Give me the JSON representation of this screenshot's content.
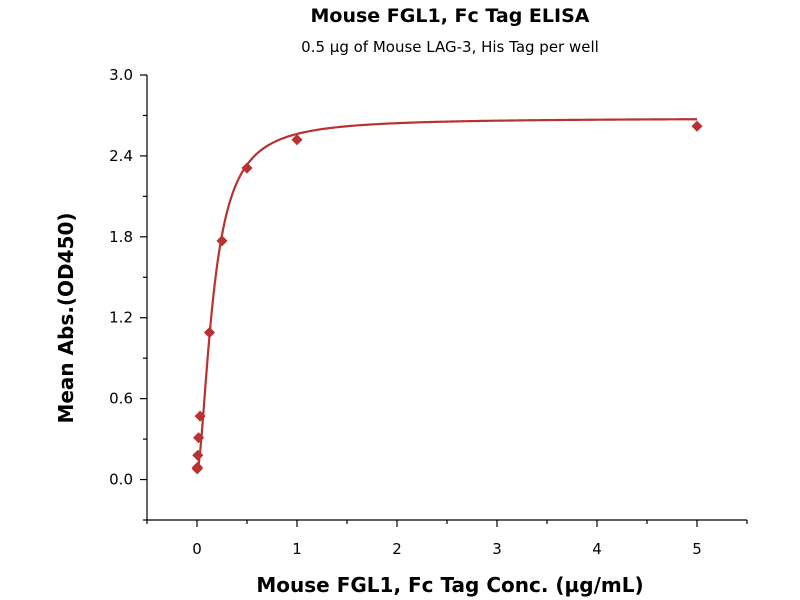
{
  "chart_data": {
    "type": "scatter",
    "title": "Mouse FGL1, Fc Tag ELISA",
    "subtitle": "0.5 µg of Mouse LAG-3, His Tag per well",
    "xlabel": "Mouse FGL1, Fc Tag Conc. (µg/mL)",
    "ylabel": "Mean Abs.(OD450)",
    "xlim": [
      -0.5,
      5.5
    ],
    "ylim": [
      -0.3,
      3.0
    ],
    "x_ticks": [
      0,
      1,
      2,
      3,
      4,
      5
    ],
    "x_tick_labels": [
      "0",
      "1",
      "2",
      "3",
      "4",
      "5"
    ],
    "x_minor_ticks": [
      -0.5,
      0.5,
      1.5,
      2.5,
      3.5,
      4.5,
      5.5
    ],
    "y_ticks": [
      0.0,
      0.6,
      1.2,
      1.8,
      2.4,
      3.0
    ],
    "y_tick_labels": [
      "0.0",
      "0.6",
      "1.2",
      "1.8",
      "2.4",
      "3.0"
    ],
    "y_minor_ticks": [
      -0.3,
      0.3,
      0.9,
      1.5,
      2.1,
      2.7
    ],
    "grid": false,
    "colors": {
      "series": "#b83232",
      "axis": "#000000"
    },
    "series": [
      {
        "marker": "diamond",
        "x": [
          0.002,
          0.004,
          0.008,
          0.016,
          0.031,
          0.125,
          0.25,
          0.5,
          1.0,
          5.0
        ],
        "y": [
          0.08,
          0.09,
          0.18,
          0.31,
          0.47,
          1.09,
          1.77,
          2.31,
          2.52,
          2.62
        ]
      }
    ],
    "fit_curve": {
      "model": "four-parameter logistic",
      "bottom": 0.06,
      "top": 2.68,
      "ec50": 0.165,
      "hill": 1.7
    }
  }
}
